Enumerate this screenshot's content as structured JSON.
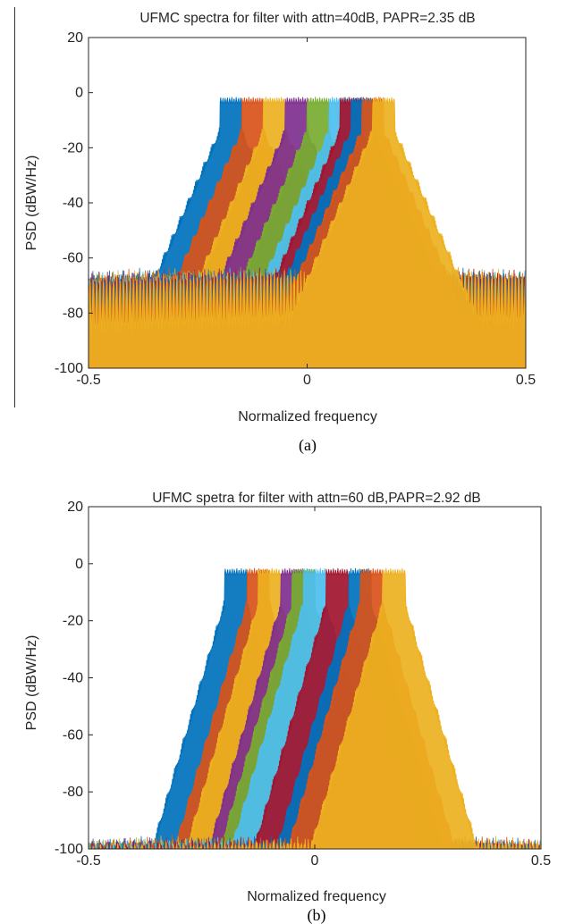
{
  "figure": {
    "captions": [
      "(a)",
      "(b)"
    ]
  },
  "chart_data": [
    {
      "type": "area",
      "title": "UFMC spectra for filter with attn=40dB, PAPR=2.35 dB",
      "xlabel": "Normalized frequency",
      "ylabel": "PSD (dBW/Hz)",
      "xlim": [
        -0.5,
        0.5
      ],
      "ylim": [
        -100,
        20
      ],
      "xticks": [
        "-0.5",
        "0",
        "0.5"
      ],
      "yticks": [
        "20",
        "0",
        "-20",
        "-40",
        "-60",
        "-80",
        "-100"
      ],
      "grid": false,
      "filter_attenuation_db": 40,
      "papr_db": 2.35,
      "noise_floor_db": -80,
      "floor_ripple_db": 18,
      "passband_level_db": 0,
      "series": [
        {
          "color": "#0072BD",
          "center": -0.175,
          "width": 0.05
        },
        {
          "color": "#D95319",
          "center": -0.125,
          "width": 0.05
        },
        {
          "color": "#EDB120",
          "center": -0.075,
          "width": 0.05
        },
        {
          "color": "#7E2F8E",
          "center": -0.025,
          "width": 0.05
        },
        {
          "color": "#77AC30",
          "center": 0.025,
          "width": 0.05
        },
        {
          "color": "#4DBEEE",
          "center": 0.075,
          "width": 0.05
        },
        {
          "color": "#A2142F",
          "center": 0.1,
          "width": 0.05
        },
        {
          "color": "#0072BD",
          "center": 0.125,
          "width": 0.05
        },
        {
          "color": "#D95319",
          "center": 0.15,
          "width": 0.05
        },
        {
          "color": "#EDB120",
          "center": 0.175,
          "width": 0.05
        }
      ]
    },
    {
      "type": "area",
      "title": "UFMC spetra for filter with attn=60 dB,PAPR=2.92 dB",
      "xlabel": "Normalized frequency",
      "ylabel": "PSD (dBW/Hz)",
      "xlim": [
        -0.5,
        0.5
      ],
      "ylim": [
        -100,
        20
      ],
      "xticks": [
        "-0.5",
        "0",
        "0.5"
      ],
      "yticks": [
        "20",
        "0",
        "-20",
        "-40",
        "-60",
        "-80",
        "-100"
      ],
      "grid": false,
      "filter_attenuation_db": 60,
      "papr_db": 2.92,
      "noise_floor_db": -100,
      "floor_ripple_db": 6,
      "passband_level_db": 0,
      "series": [
        {
          "color": "#0072BD",
          "center": -0.175,
          "width": 0.05
        },
        {
          "color": "#D95319",
          "center": -0.125,
          "width": 0.05
        },
        {
          "color": "#EDB120",
          "center": -0.1,
          "width": 0.05
        },
        {
          "color": "#7E2F8E",
          "center": -0.05,
          "width": 0.05
        },
        {
          "color": "#77AC30",
          "center": -0.025,
          "width": 0.05
        },
        {
          "color": "#4DBEEE",
          "center": 0.0,
          "width": 0.05
        },
        {
          "color": "#A2142F",
          "center": 0.05,
          "width": 0.05
        },
        {
          "color": "#0072BD",
          "center": 0.1,
          "width": 0.05
        },
        {
          "color": "#D95319",
          "center": 0.125,
          "width": 0.05
        },
        {
          "color": "#EDB120",
          "center": 0.175,
          "width": 0.05
        }
      ]
    }
  ]
}
